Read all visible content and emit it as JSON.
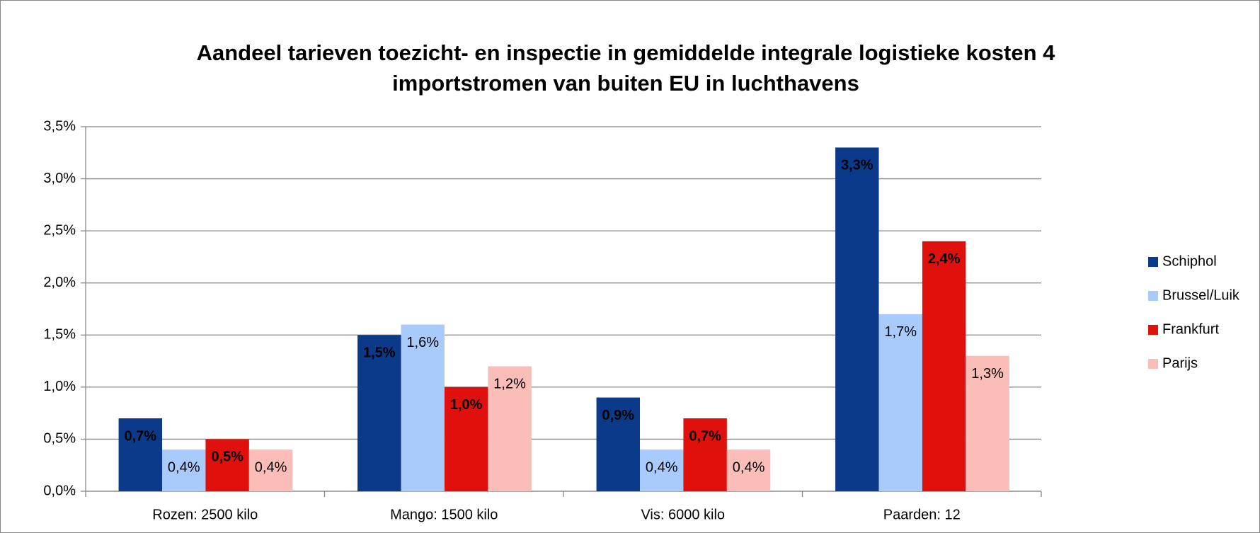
{
  "chart_data": {
    "type": "bar",
    "title": [
      "Aandeel tarieven toezicht- en inspectie in gemiddelde integrale logistieke kosten 4",
      "importstromen van buiten EU in luchthavens"
    ],
    "categories": [
      "Rozen: 2500 kilo",
      "Mango: 1500 kilo",
      "Vis: 6000 kilo",
      "Paarden: 12"
    ],
    "series": [
      {
        "name": "Schiphol",
        "color": "#0c3a8a",
        "values": [
          0.7,
          1.5,
          0.9,
          3.3
        ],
        "value_labels": [
          "0,7%",
          "1,5%",
          "0,9%",
          "3,3%"
        ]
      },
      {
        "name": "Brussel/Luik",
        "color": "#a9cbfb",
        "values": [
          0.4,
          1.6,
          0.4,
          1.7
        ],
        "value_labels": [
          "0,4%",
          "1,6%",
          "0,4%",
          "1,7%"
        ]
      },
      {
        "name": "Frankfurt",
        "color": "#e0100c",
        "values": [
          0.5,
          1.0,
          0.7,
          2.4
        ],
        "value_labels": [
          "0,5%",
          "1,0%",
          "0,7%",
          "2,4%"
        ]
      },
      {
        "name": "Parijs",
        "color": "#fbbdb8",
        "values": [
          0.4,
          1.2,
          0.4,
          1.3
        ],
        "value_labels": [
          "0,4%",
          "1,2%",
          "0,4%",
          "1,3%"
        ]
      }
    ],
    "ylim": [
      0,
      3.5
    ],
    "yticks": [
      {
        "value": 0,
        "label": "0,0%"
      },
      {
        "value": 0.5,
        "label": "0,5%"
      },
      {
        "value": 1,
        "label": "1,0%"
      },
      {
        "value": 1.5,
        "label": "1,5%"
      },
      {
        "value": 2,
        "label": "2,0%"
      },
      {
        "value": 2.5,
        "label": "2,5%"
      },
      {
        "value": 3,
        "label": "3,0%"
      },
      {
        "value": 3.5,
        "label": "3,5%"
      }
    ],
    "grid": true,
    "legend": "right"
  }
}
